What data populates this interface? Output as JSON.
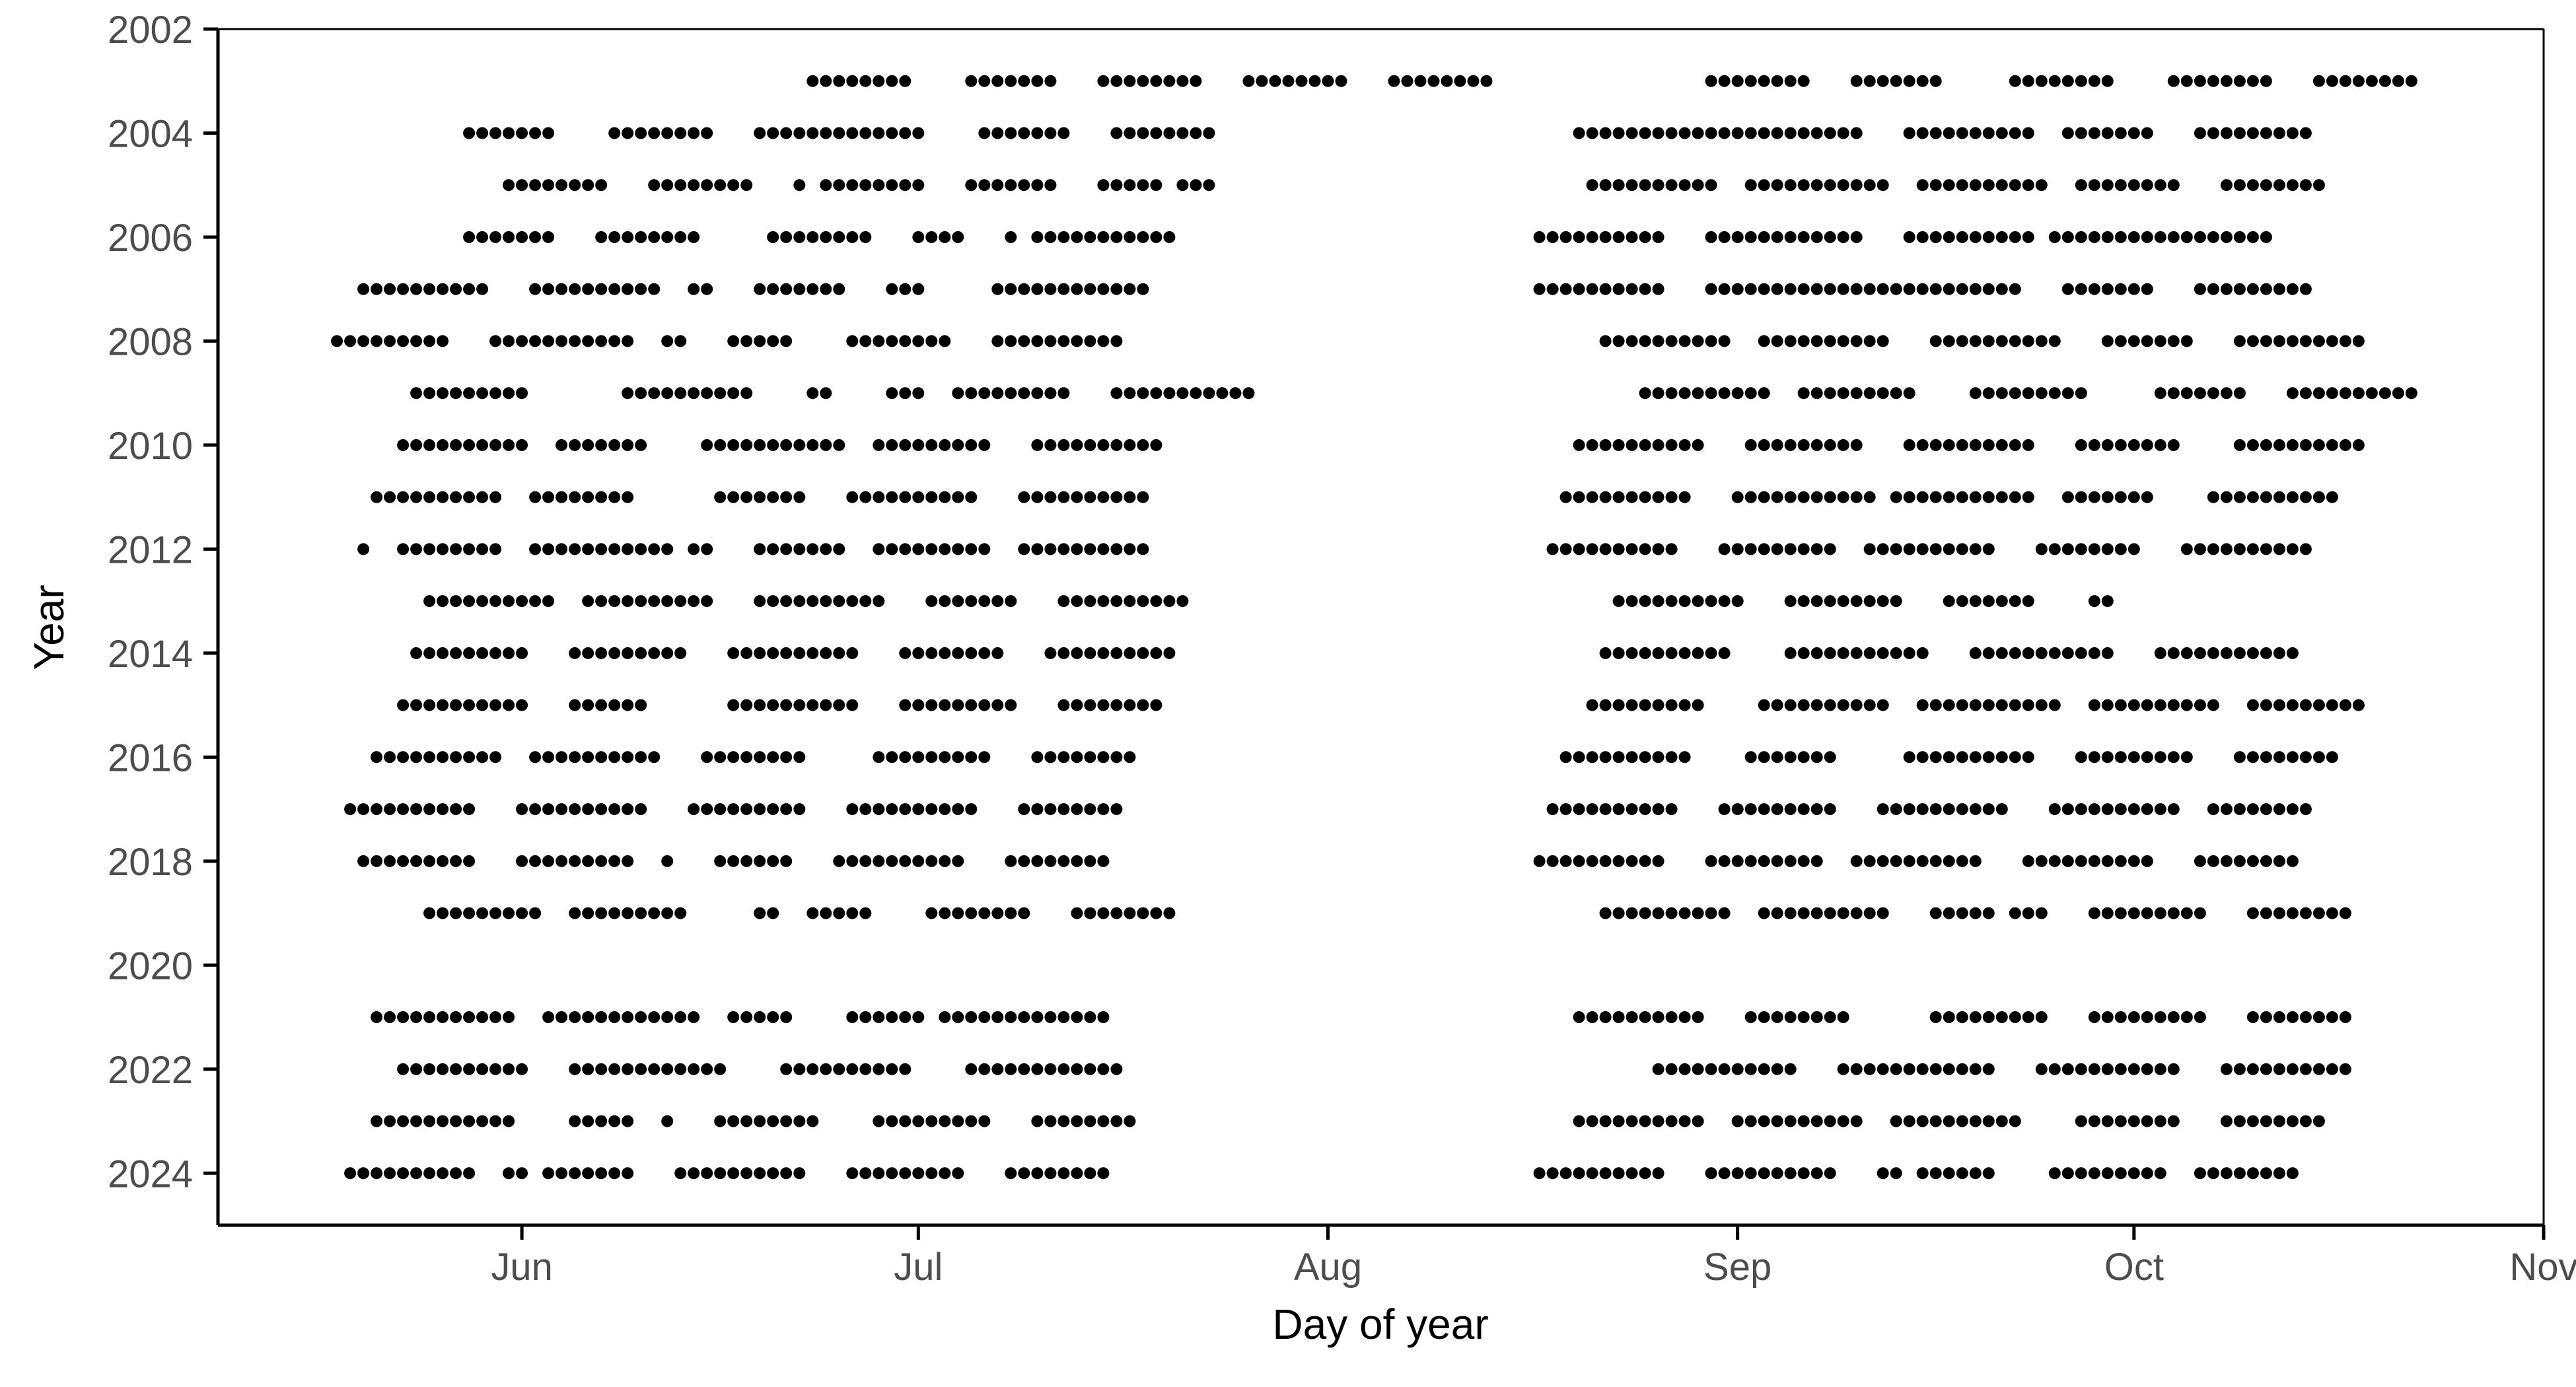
{
  "chart_data": {
    "type": "scatter",
    "title": "",
    "xlabel": "Day of year",
    "ylabel": "Year",
    "x_axis": {
      "type": "date",
      "range": [
        "05-09",
        "11-01"
      ],
      "ticks": [
        {
          "date": "06-01",
          "label": "Jun"
        },
        {
          "date": "07-01",
          "label": "Jul"
        },
        {
          "date": "08-01",
          "label": "Aug"
        },
        {
          "date": "09-01",
          "label": "Sep"
        },
        {
          "date": "10-01",
          "label": "Oct"
        },
        {
          "date": "11-01",
          "label": "Nov"
        }
      ]
    },
    "y_axis": {
      "range": [
        2002,
        2025
      ],
      "reversed": true,
      "ticks": [
        2002,
        2004,
        2006,
        2008,
        2010,
        2012,
        2014,
        2016,
        2018,
        2020,
        2022,
        2024
      ]
    },
    "grid": false,
    "point_color": "#000000",
    "observations": [
      {
        "year": 2003,
        "dates": [
          "06-23/06-30",
          "07-05/07-11",
          "07-15/07-22",
          "07-26/08-02",
          "08-06/08-13",
          "08-30/09-06",
          "09-10/09-16",
          "09-22/09-29",
          "10-04/10-11",
          "10-15/10-22"
        ]
      },
      {
        "year": 2004,
        "dates": [
          "05-28/06-03",
          "06-08/06-15",
          "06-19/06-26",
          "06-27/07-01",
          "07-06/07-12",
          "07-16/07-23",
          "08-20/09-10",
          "09-14/09-23",
          "09-26/10-02",
          "10-06/10-14"
        ]
      },
      {
        "year": 2005,
        "dates": [
          "05-31/06-07",
          "06-11/06-16",
          "06-17/06-18",
          "06-22",
          "06-24/07-01",
          "07-05/07-11",
          "07-15/07-19",
          "07-21/07-23",
          "08-21/08-30",
          "09-02/09-12",
          "09-15/09-24",
          "09-27/10-04",
          "10-08/10-15"
        ]
      },
      {
        "year": 2006,
        "dates": [
          "05-28/06-03",
          "06-07/06-14",
          "06-20/06-27",
          "07-01/07-04",
          "07-08",
          "07-10/07-20",
          "08-17/08-26",
          "08-30/09-10",
          "09-14/09-23",
          "09-25/10-04",
          "10-05/10-11"
        ]
      },
      {
        "year": 2007,
        "dates": [
          "05-20/05-29",
          "06-02/06-11",
          "06-14/06-15",
          "06-19/06-25",
          "06-29/07-01",
          "07-07/07-18",
          "08-17/08-26",
          "08-30/09-12",
          "09-12/09-22",
          "09-26/10-02",
          "10-06/10-14"
        ]
      },
      {
        "year": 2008,
        "dates": [
          "05-18/05-22",
          "05-23/05-26",
          "05-30/06-09",
          "06-12/06-13",
          "06-17/06-21",
          "06-26/07-03",
          "07-07/07-16",
          "08-22/08-31",
          "09-03/09-12",
          "09-16/09-25",
          "09-29/10-05",
          "10-09/10-18"
        ]
      },
      {
        "year": 2009,
        "dates": [
          "05-24/06-01",
          "06-09/06-18",
          "06-23/06-24",
          "06-29/07-01",
          "07-04/07-12",
          "07-16/07-26",
          "08-25/09-03",
          "09-06/09-14",
          "09-19/09-27",
          "10-03/10-09",
          "10-13/10-22"
        ]
      },
      {
        "year": 2010,
        "dates": [
          "05-23/06-01",
          "06-04/06-10",
          "06-15/06-25",
          "06-28/07-06",
          "07-10/07-19",
          "08-20/08-29",
          "09-02/09-10",
          "09-14/09-23",
          "09-27/10-04",
          "10-09/10-18"
        ]
      },
      {
        "year": 2011,
        "dates": [
          "05-21/05-30",
          "06-02/06-09",
          "06-16/06-22",
          "06-26/07-05",
          "07-09/07-18",
          "08-19/08-28",
          "09-01/09-11",
          "09-13/09-23",
          "09-26/10-02",
          "10-07/10-16"
        ]
      },
      {
        "year": 2012,
        "dates": [
          "05-20",
          "05-23/05-30",
          "06-02/06-12",
          "06-14/06-15",
          "06-19/06-25",
          "06-28/07-06",
          "07-09/07-18",
          "08-18/08-27",
          "08-31/09-08",
          "09-11/09-20",
          "09-24/10-01",
          "10-05/10-14"
        ]
      },
      {
        "year": 2013,
        "dates": [
          "05-25/06-03",
          "06-06/06-15",
          "06-19/06-28",
          "07-02/07-08",
          "07-12/07-21",
          "08-23/09-01",
          "09-05/09-08",
          "09-09/09-13",
          "09-17/09-23",
          "09-28/09-29"
        ]
      },
      {
        "year": 2014,
        "dates": [
          "05-24/06-01",
          "06-05/06-13",
          "06-17/06-26",
          "06-30/07-07",
          "07-11/07-20",
          "08-22/08-31",
          "09-05/09-15",
          "09-19/09-29",
          "10-03/10-13"
        ]
      },
      {
        "year": 2015,
        "dates": [
          "05-23/06-01",
          "06-05/06-10",
          "06-17/06-26",
          "06-30/07-08",
          "07-12/07-19",
          "08-21/08-27",
          "08-28/08-29",
          "09-03/09-12",
          "09-15/09-25",
          "09-28/10-07",
          "10-10/10-18"
        ]
      },
      {
        "year": 2016,
        "dates": [
          "05-21/05-30",
          "06-02/06-11",
          "06-15/06-22",
          "06-28/07-06",
          "07-10/07-17",
          "08-19/08-28",
          "09-02/09-08",
          "09-14/09-23",
          "09-27/10-05",
          "10-09/10-16"
        ]
      },
      {
        "year": 2017,
        "dates": [
          "05-19/05-28",
          "06-01/06-10",
          "06-14/06-19",
          "06-20/06-22",
          "06-26/07-05",
          "07-09/07-16",
          "08-18/08-27",
          "08-31/09-08",
          "09-12/09-21",
          "09-25/09-29",
          "09-30/10-04",
          "10-07/10-14"
        ]
      },
      {
        "year": 2018,
        "dates": [
          "05-20/05-28",
          "06-01/06-09",
          "06-12",
          "06-16/06-21",
          "06-25/07-04",
          "07-08/07-15",
          "08-17/08-26",
          "08-30/09-07",
          "09-10/09-19",
          "09-23/10-02",
          "10-06/10-13"
        ]
      },
      {
        "year": 2019,
        "dates": [
          "05-25/06-02",
          "06-05/06-08",
          "06-09/06-13",
          "06-19/06-20",
          "06-23/06-27",
          "07-02/07-09",
          "07-13/07-20",
          "08-22/08-31",
          "09-03/09-12",
          "09-16/09-20",
          "09-22/09-24",
          "09-28/10-06",
          "10-10/10-17"
        ]
      },
      {
        "year": 2021,
        "dates": [
          "05-21/05-31",
          "06-03/06-14",
          "06-17/06-21",
          "06-26/07-01",
          "07-03/07-15",
          "08-20/08-29",
          "09-02/09-09",
          "09-16/09-24",
          "09-28/10-06",
          "10-10/10-17"
        ]
      },
      {
        "year": 2022,
        "dates": [
          "05-23/06-01",
          "06-05/06-16",
          "06-21/06-30",
          "07-05/07-16",
          "08-26/09-05",
          "09-09/09-15",
          "09-16/09-20",
          "09-24/10-04",
          "10-08/10-15",
          "10-16/10-17"
        ]
      },
      {
        "year": 2023,
        "dates": [
          "05-21/05-31",
          "06-05/06-09",
          "06-12",
          "06-16/06-23",
          "06-28/07-06",
          "07-10/07-17",
          "08-20/08-29",
          "09-01/09-10",
          "09-13/09-22",
          "09-27/10-04",
          "10-08/10-15"
        ]
      },
      {
        "year": 2024,
        "dates": [
          "05-19/05-28",
          "05-31/06-01",
          "06-03/06-09",
          "06-13/06-22",
          "06-26/07-04",
          "07-08/07-15",
          "08-17/08-26",
          "08-30/09-08",
          "09-12/09-13",
          "09-15/09-20",
          "09-25/10-03",
          "10-06/10-13"
        ]
      }
    ]
  }
}
